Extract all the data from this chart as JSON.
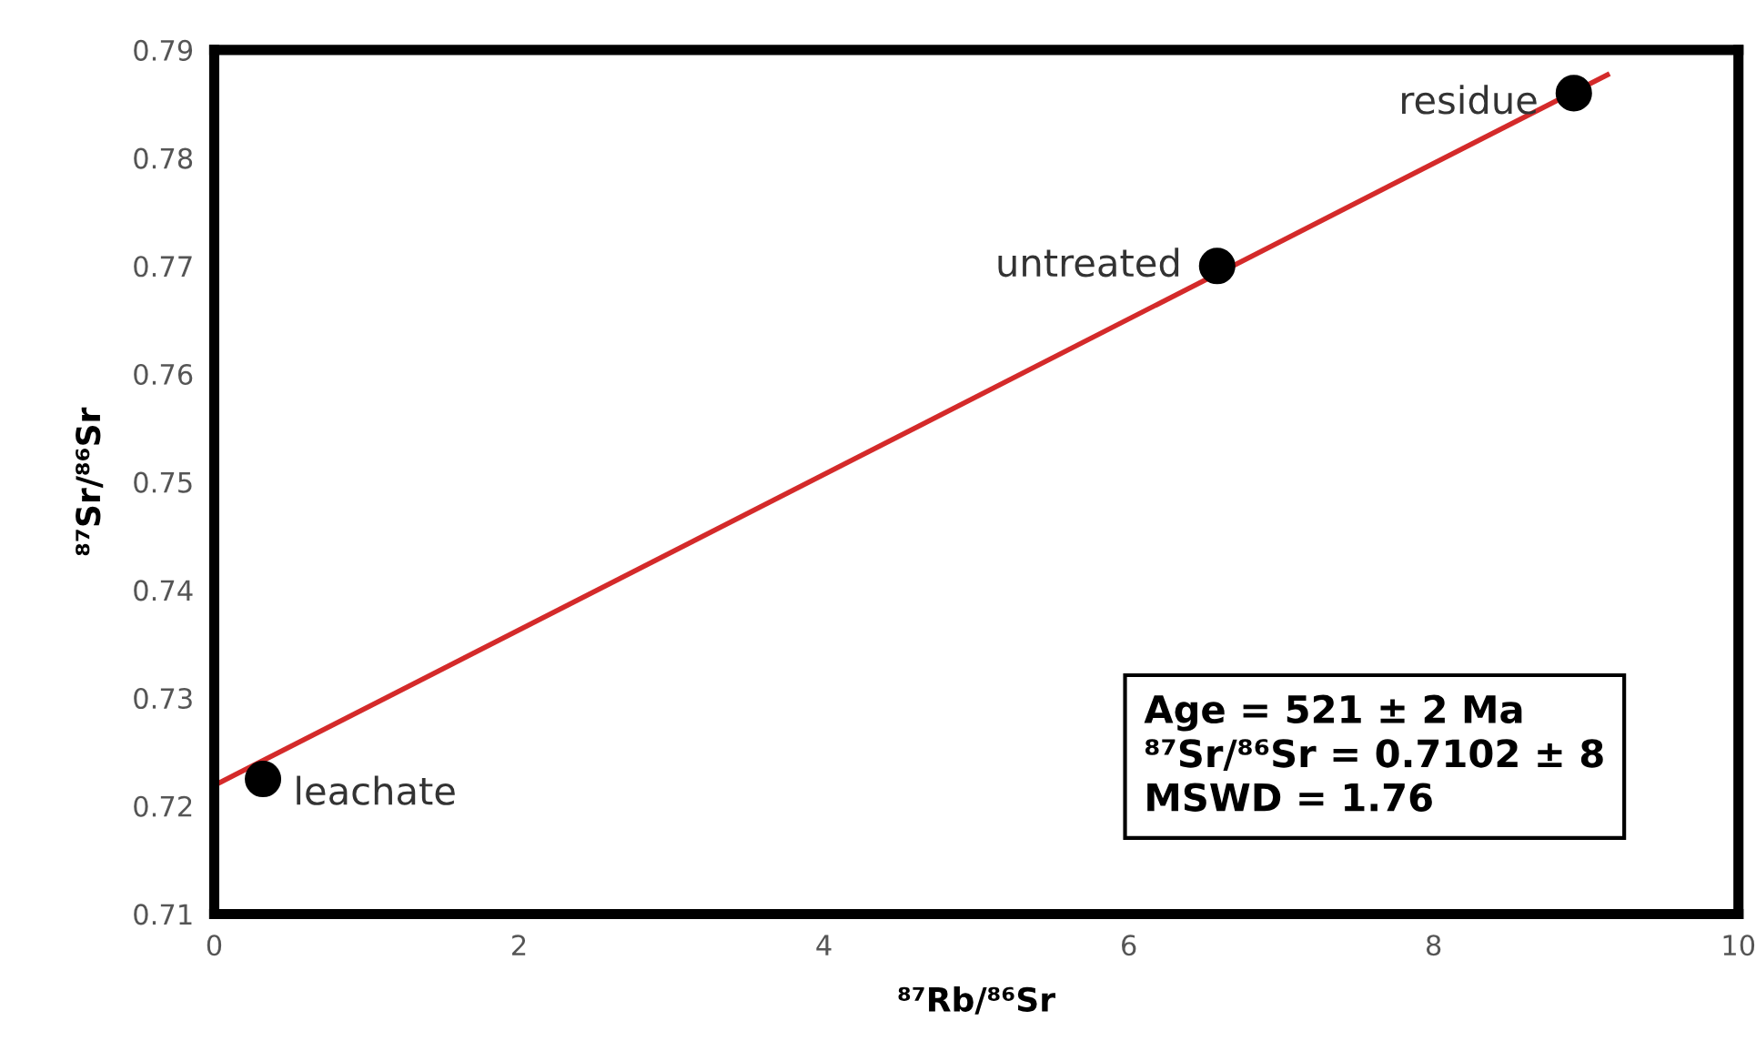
{
  "chart_data": {
    "type": "scatter",
    "xlabel": "⁸⁷Rb/⁸⁶Sr",
    "ylabel": "⁸⁷Sr/⁸⁶Sr",
    "series": [
      {
        "type": "line",
        "color": "#d42a2a",
        "x": [
          0,
          9.14
        ],
        "values": [
          0.7219,
          0.7877
        ],
        "marker": "none",
        "line_style": "solid"
      },
      {
        "color": "#000000",
        "x": [
          0.32,
          6.58,
          8.92
        ],
        "values": [
          0.7225,
          0.77,
          0.786
        ],
        "marker": "circle"
      }
    ],
    "annotations": [
      {
        "text": "leachate",
        "x": 0.32,
        "y": 0.7225
      },
      {
        "text": "untreated",
        "x": 6.58,
        "y": 0.77
      },
      {
        "text": "residue",
        "x": 8.92,
        "y": 0.786
      },
      "Age = 521 ± 2 Ma\n⁸⁷Sr/⁸⁶Sr = 0.7102 ± 8\nMSWD = 1.76"
    ],
    "xlim": [
      0,
      10
    ],
    "xticks": [
      0,
      2,
      4,
      6,
      8,
      10
    ],
    "ylim": [
      0.71,
      0.79
    ],
    "yticks": [
      0.71,
      0.72,
      0.73,
      0.74,
      0.75,
      0.76,
      0.77,
      0.78,
      0.79
    ],
    "grid": false,
    "legend": false
  }
}
